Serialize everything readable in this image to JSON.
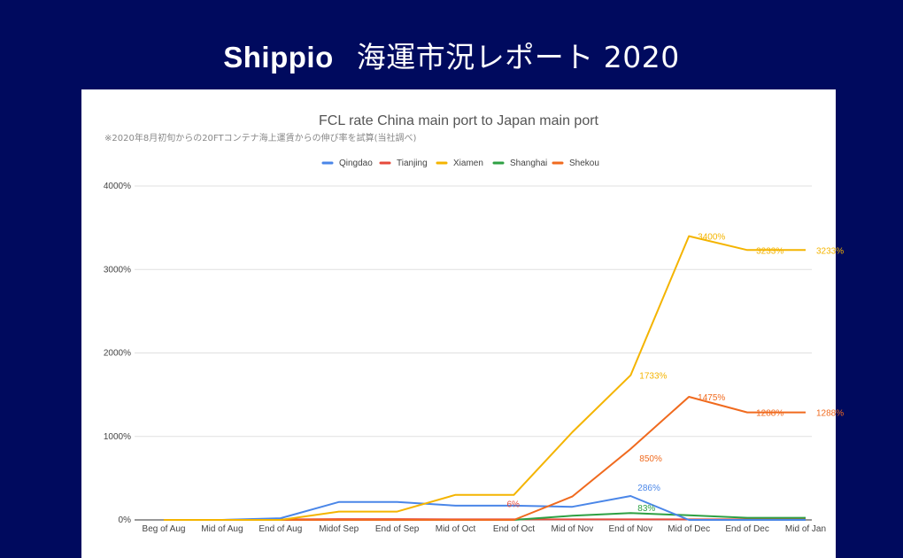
{
  "banner": {
    "brand": "Shippio",
    "title": "海運市況レポート 2020"
  },
  "colors": {
    "background": "#000a5e",
    "panel": "#ffffff",
    "gridline": "#e0e0e0",
    "baseline": "#333333"
  },
  "chart_data": {
    "type": "line",
    "title": "FCL rate China main port to Japan main port",
    "subtitle": "※2020年8月初旬からの20FTコンテナ海上運賃からの伸び率を試算(当社調べ)",
    "xlabel": "",
    "ylabel": "",
    "ylim": [
      0,
      4000
    ],
    "yticks": [
      {
        "value": 0,
        "label": "0%"
      },
      {
        "value": 1000,
        "label": "1000%"
      },
      {
        "value": 2000,
        "label": "2000%"
      },
      {
        "value": 3000,
        "label": "3000%"
      },
      {
        "value": 4000,
        "label": "4000%"
      }
    ],
    "grid": true,
    "legend_position": "top",
    "categories": [
      "Beg of Aug",
      "Mid of Aug",
      "End of Aug",
      "Midof Sep",
      "End of Sep",
      "Mid of Oct",
      "End of Oct",
      "Mid of Nov",
      "End of Nov",
      "Mid of Dec",
      "End of Dec",
      "Mid of Jan"
    ],
    "series": [
      {
        "name": "Qingdao",
        "color": "#4a86e8",
        "values": [
          0,
          0,
          20,
          214,
          214,
          171,
          171,
          157,
          286,
          0,
          0,
          0
        ],
        "labels": [
          {
            "index": 8,
            "text": "286%"
          }
        ]
      },
      {
        "name": "Tianjing",
        "color": "#e64a3b",
        "values": [
          0,
          0,
          5,
          10,
          10,
          6,
          6,
          6,
          6,
          6,
          6,
          6
        ],
        "labels": [
          {
            "index": 6,
            "text": "6%"
          }
        ]
      },
      {
        "name": "Xiamen",
        "color": "#f4b400",
        "values": [
          0,
          0,
          0,
          100,
          100,
          300,
          300,
          1050,
          1733,
          3400,
          3233,
          3233
        ],
        "labels": [
          {
            "index": 8,
            "text": "1733%"
          },
          {
            "index": 9,
            "text": "3400%"
          },
          {
            "index": 10,
            "text": "3233%"
          },
          {
            "index": 11,
            "text": "3233%"
          }
        ]
      },
      {
        "name": "Shanghai",
        "color": "#2ea043",
        "values": [
          0,
          0,
          0,
          0,
          0,
          0,
          0,
          50,
          83,
          55,
          25,
          25
        ],
        "labels": [
          {
            "index": 8,
            "text": "83%"
          }
        ]
      },
      {
        "name": "Shekou",
        "color": "#f06a1e",
        "values": [
          0,
          0,
          0,
          0,
          0,
          0,
          0,
          280,
          850,
          1475,
          1288,
          1288
        ],
        "labels": [
          {
            "index": 8,
            "text": "850%"
          },
          {
            "index": 9,
            "text": "1475%"
          },
          {
            "index": 10,
            "text": "1288%"
          },
          {
            "index": 11,
            "text": "1288%"
          }
        ]
      }
    ]
  }
}
